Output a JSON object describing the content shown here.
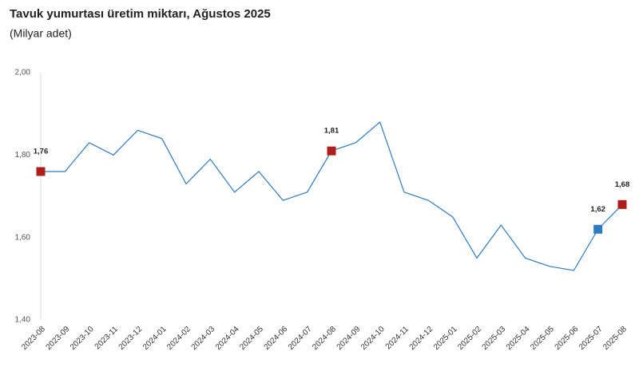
{
  "chart_data": {
    "type": "line",
    "title": "Tavuk yumurtası üretim miktarı, Ağustos 2025",
    "subtitle": "(Milyar adet)",
    "categories": [
      "2023-08",
      "2023-09",
      "2023-10",
      "2023-11",
      "2023-12",
      "2024-01",
      "2024-02",
      "2024-03",
      "2024-04",
      "2024-05",
      "2024-06",
      "2024-07",
      "2024-08",
      "2024-09",
      "2024-10",
      "2024-11",
      "2024-12",
      "2025-01",
      "2025-02",
      "2025-03",
      "2025-04",
      "2025-05",
      "2025-06",
      "2025-07",
      "2025-08"
    ],
    "values": [
      1.76,
      1.76,
      1.83,
      1.8,
      1.86,
      1.84,
      1.73,
      1.79,
      1.71,
      1.76,
      1.69,
      1.71,
      1.81,
      1.83,
      1.88,
      1.71,
      1.69,
      1.65,
      1.55,
      1.63,
      1.55,
      1.53,
      1.52,
      1.62,
      1.68
    ],
    "value_labels": [
      "1,76",
      null,
      null,
      null,
      null,
      null,
      null,
      null,
      null,
      null,
      null,
      null,
      "1,81",
      null,
      null,
      null,
      null,
      null,
      null,
      null,
      null,
      null,
      null,
      "1,62",
      "1,68"
    ],
    "marker_colors": [
      "#b01c1c",
      null,
      null,
      null,
      null,
      null,
      null,
      null,
      null,
      null,
      null,
      null,
      "#b01c1c",
      null,
      null,
      null,
      null,
      null,
      null,
      null,
      null,
      null,
      null,
      "#2e7bbf",
      "#b01c1c"
    ],
    "color": "#2e7bbf",
    "ylim": [
      1.4,
      2.0
    ],
    "yticks": [
      {
        "value": 1.4,
        "label": "1,40"
      },
      {
        "value": 1.6,
        "label": "1,60"
      },
      {
        "value": 1.8,
        "label": "1,80"
      },
      {
        "value": 2.0,
        "label": "2,00"
      }
    ],
    "grid": false
  }
}
